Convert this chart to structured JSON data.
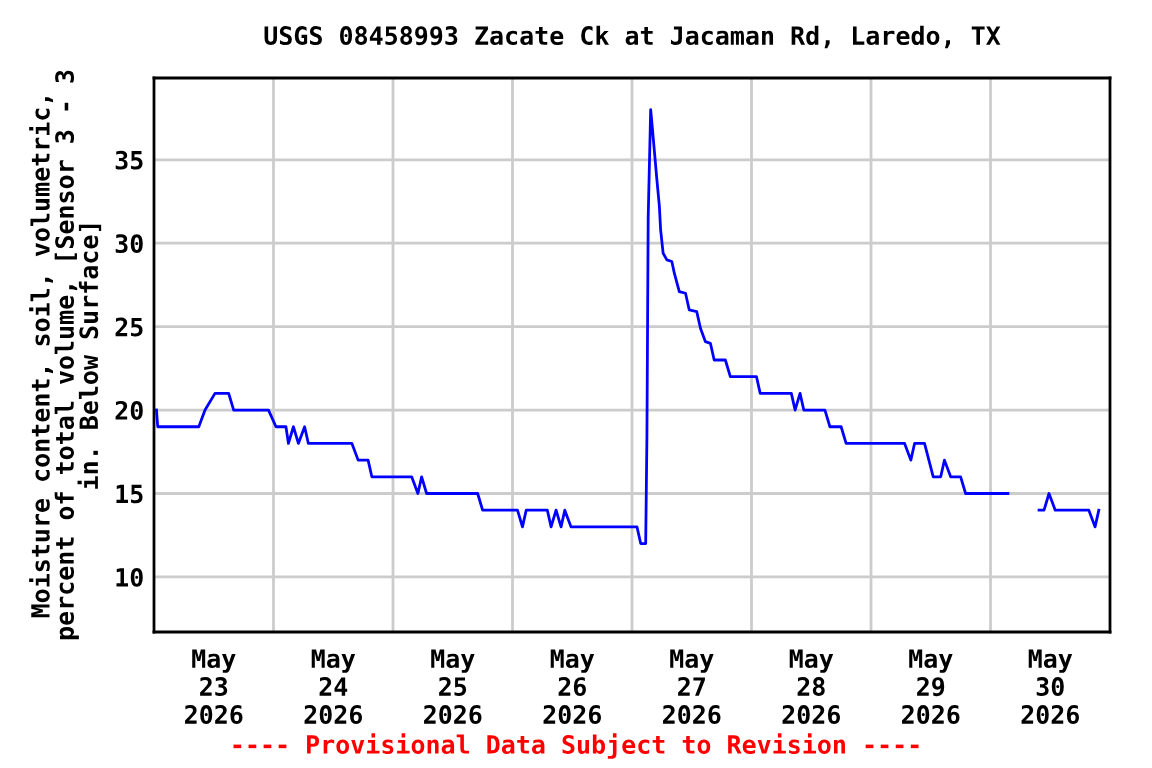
{
  "chart_data": {
    "type": "line",
    "title": "USGS 08458993 Zacate Ck at Jacaman Rd, Laredo, TX",
    "ylabel": "Moisture content, soil, volumetric,\npercent of total volume, [Sensor 3 - 3\nin. Below Surface]",
    "annotations": [
      "---- Provisional Data Subject to Revision ----"
    ],
    "x": [
      "2026-05-23T00:30",
      "2026-05-23T00:45",
      "2026-05-23T09:00",
      "2026-05-23T10:15",
      "2026-05-23T12:15",
      "2026-05-23T15:00",
      "2026-05-23T16:00",
      "2026-05-23T23:00",
      "2026-05-24T00:30",
      "2026-05-24T02:30",
      "2026-05-24T03:00",
      "2026-05-24T04:00",
      "2026-05-24T05:00",
      "2026-05-24T06:15",
      "2026-05-24T07:00",
      "2026-05-24T15:45",
      "2026-05-24T17:00",
      "2026-05-24T19:00",
      "2026-05-24T19:45",
      "2026-05-25T03:45",
      "2026-05-25T05:00",
      "2026-05-25T05:45",
      "2026-05-25T06:45",
      "2026-05-25T17:00",
      "2026-05-25T18:00",
      "2026-05-26T01:00",
      "2026-05-26T02:00",
      "2026-05-26T02:45",
      "2026-05-26T07:00",
      "2026-05-26T07:45",
      "2026-05-26T08:45",
      "2026-05-26T09:45",
      "2026-05-26T10:30",
      "2026-05-26T11:45",
      "2026-05-27T01:00",
      "2026-05-27T01:45",
      "2026-05-27T02:45",
      "2026-05-27T03:00",
      "2026-05-27T03:15",
      "2026-05-27T03:45",
      "2026-05-27T04:00",
      "2026-05-27T04:30",
      "2026-05-27T05:00",
      "2026-05-27T05:30",
      "2026-05-27T05:45",
      "2026-05-27T06:15",
      "2026-05-27T07:00",
      "2026-05-27T08:00",
      "2026-05-27T08:30",
      "2026-05-27T09:30",
      "2026-05-27T10:45",
      "2026-05-27T11:30",
      "2026-05-27T13:00",
      "2026-05-27T13:45",
      "2026-05-27T14:45",
      "2026-05-27T15:45",
      "2026-05-27T16:30",
      "2026-05-27T18:45",
      "2026-05-27T19:45",
      "2026-05-28T01:00",
      "2026-05-28T01:45",
      "2026-05-28T08:00",
      "2026-05-28T08:45",
      "2026-05-28T09:45",
      "2026-05-28T10:30",
      "2026-05-28T14:45",
      "2026-05-28T15:45",
      "2026-05-28T18:00",
      "2026-05-28T19:00",
      "2026-05-29T06:45",
      "2026-05-29T08:00",
      "2026-05-29T08:45",
      "2026-05-29T10:45",
      "2026-05-29T12:30",
      "2026-05-29T14:00",
      "2026-05-29T14:45",
      "2026-05-29T16:00",
      "2026-05-29T18:00",
      "2026-05-29T19:00",
      "2026-05-30T03:30",
      "2026-05-30T06:00",
      "2026-05-30T09:45",
      "2026-05-30T10:45",
      "2026-05-30T11:45",
      "2026-05-30T13:00",
      "2026-05-30T19:45",
      "2026-05-30T21:00",
      "2026-05-30T21:45"
    ],
    "series": [
      {
        "color": "#0000ff",
        "values": [
          20,
          19,
          19,
          20,
          21,
          21,
          20,
          20,
          19,
          19,
          18,
          19,
          18,
          19,
          18,
          18,
          17,
          17,
          16,
          16,
          15,
          16,
          15,
          15,
          14,
          14,
          13,
          14,
          14,
          13,
          14,
          13,
          14,
          13,
          13,
          12,
          12,
          18.5,
          31.5,
          38,
          37.2,
          35.5,
          33.8,
          32.2,
          30.8,
          29.4,
          29,
          28.9,
          28.2,
          27.1,
          27,
          26,
          25.9,
          24.9,
          24.1,
          24,
          23,
          23,
          22,
          22,
          21,
          21,
          20,
          21,
          20,
          20,
          19,
          19,
          18,
          18,
          17,
          18,
          18,
          16,
          16,
          17,
          16,
          16,
          15,
          15,
          null,
          14,
          14,
          15,
          14,
          14,
          13,
          14
        ]
      }
    ],
    "xlim": [
      "2026-05-23T00:00",
      "2026-05-31T00:00"
    ],
    "xticks": [
      {
        "value": "2026-05-23T12:00",
        "label": "May\n23\n2026"
      },
      {
        "value": "2026-05-24T00:00",
        "label": null
      },
      {
        "value": "2026-05-24T12:00",
        "label": "May\n24\n2026"
      },
      {
        "value": "2026-05-25T00:00",
        "label": null
      },
      {
        "value": "2026-05-25T12:00",
        "label": "May\n25\n2026"
      },
      {
        "value": "2026-05-26T00:00",
        "label": null
      },
      {
        "value": "2026-05-26T12:00",
        "label": "May\n26\n2026"
      },
      {
        "value": "2026-05-27T00:00",
        "label": null
      },
      {
        "value": "2026-05-27T12:00",
        "label": "May\n27\n2026"
      },
      {
        "value": "2026-05-28T00:00",
        "label": null
      },
      {
        "value": "2026-05-28T12:00",
        "label": "May\n28\n2026"
      },
      {
        "value": "2026-05-29T00:00",
        "label": null
      },
      {
        "value": "2026-05-29T12:00",
        "label": "May\n29\n2026"
      },
      {
        "value": "2026-05-30T00:00",
        "label": null
      },
      {
        "value": "2026-05-30T12:00",
        "label": "May\n30\n2026"
      }
    ],
    "ylim": [
      6.7,
      39.9
    ],
    "yticks": [
      10,
      15,
      20,
      25,
      30,
      35
    ],
    "grid": true,
    "legend": false,
    "marker": "none",
    "line_style": "solid"
  }
}
